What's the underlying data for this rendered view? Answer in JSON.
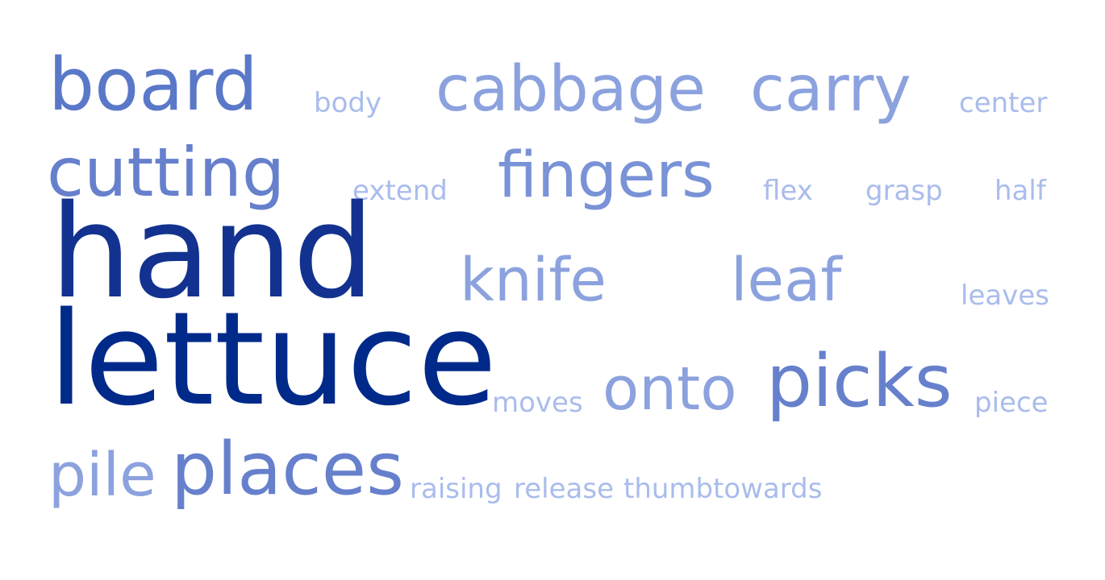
{
  "words": [
    {
      "id": "board",
      "text": "board",
      "color": "#5a78c8"
    },
    {
      "id": "body",
      "text": "body",
      "color": "#a9bcec"
    },
    {
      "id": "cabbage",
      "text": "cabbage",
      "color": "#8ca2de"
    },
    {
      "id": "carry",
      "text": "carry",
      "color": "#8ca2de"
    },
    {
      "id": "center",
      "text": "center",
      "color": "#a9bcec"
    },
    {
      "id": "cutting",
      "text": "cutting",
      "color": "#6680cc"
    },
    {
      "id": "extend",
      "text": "extend",
      "color": "#a9bcec"
    },
    {
      "id": "fingers",
      "text": "fingers",
      "color": "#7a92d6"
    },
    {
      "id": "flex",
      "text": "flex",
      "color": "#a9bcec"
    },
    {
      "id": "grasp",
      "text": "grasp",
      "color": "#a9bcec"
    },
    {
      "id": "half",
      "text": "half",
      "color": "#a9bcec"
    },
    {
      "id": "hand",
      "text": "hand",
      "color": "#13328f"
    },
    {
      "id": "knife",
      "text": "knife",
      "color": "#8ca2de"
    },
    {
      "id": "leaf",
      "text": "leaf",
      "color": "#8ca2de"
    },
    {
      "id": "leaves",
      "text": "leaves",
      "color": "#a9bcec"
    },
    {
      "id": "lettuce",
      "text": "lettuce",
      "color": "#002a8a"
    },
    {
      "id": "moves",
      "text": "moves",
      "color": "#a9bcec"
    },
    {
      "id": "onto",
      "text": "onto",
      "color": "#8ca2de"
    },
    {
      "id": "picks",
      "text": "picks",
      "color": "#6680cc"
    },
    {
      "id": "piece",
      "text": "piece",
      "color": "#a9bcec"
    },
    {
      "id": "pile",
      "text": "pile",
      "color": "#8ca2de"
    },
    {
      "id": "places",
      "text": "places",
      "color": "#6680cc"
    },
    {
      "id": "raising",
      "text": "raising",
      "color": "#a9bcec"
    },
    {
      "id": "release",
      "text": "release",
      "color": "#a9bcec"
    },
    {
      "id": "thumb",
      "text": "thumb",
      "color": "#a9bcec"
    },
    {
      "id": "towards",
      "text": "towards",
      "color": "#a9bcec"
    }
  ]
}
